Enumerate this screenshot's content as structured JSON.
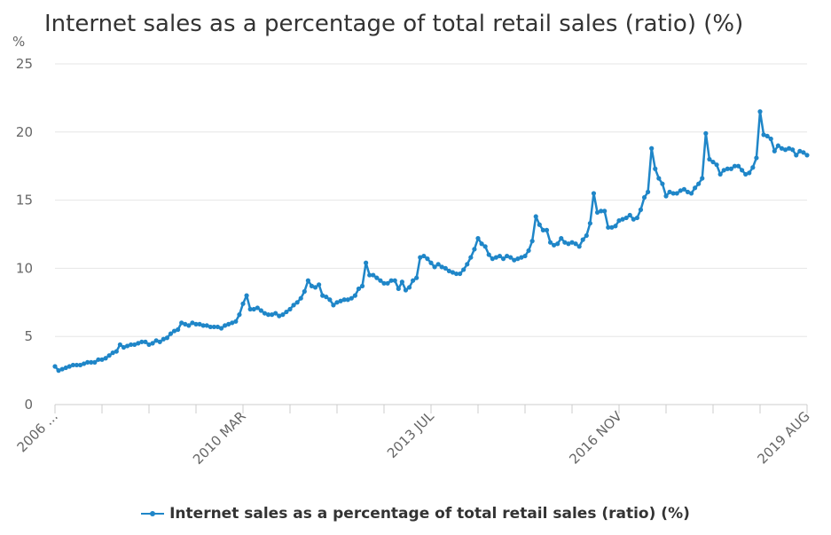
{
  "chart_data": {
    "type": "line",
    "title": "Internet sales as a percentage of total retail sales (ratio) (%)",
    "unit_label": "%",
    "y_ticks": [
      "0",
      "5",
      "10",
      "15",
      "20",
      "25"
    ],
    "ylim": [
      0,
      25
    ],
    "x_tick_labels": [
      "2006 ...",
      "2010 MAR",
      "2013 JUL",
      "2016 NOV",
      "2019 AUG"
    ],
    "grid": true,
    "legend_position": "bottom",
    "series": [
      {
        "name": "Internet sales as a percentage of total retail sales (ratio) (%)",
        "color": "#1f86c8",
        "start": "2006-11",
        "end": "2019-08",
        "values": [
          2.8,
          2.5,
          2.6,
          2.7,
          2.8,
          2.9,
          2.9,
          2.9,
          3.0,
          3.1,
          3.1,
          3.1,
          3.3,
          3.3,
          3.4,
          3.6,
          3.8,
          3.9,
          4.4,
          4.2,
          4.3,
          4.4,
          4.4,
          4.5,
          4.6,
          4.6,
          4.4,
          4.5,
          4.7,
          4.6,
          4.8,
          4.9,
          5.2,
          5.4,
          5.5,
          6.0,
          5.9,
          5.8,
          6.0,
          5.9,
          5.9,
          5.8,
          5.8,
          5.7,
          5.7,
          5.7,
          5.6,
          5.8,
          5.9,
          6.0,
          6.1,
          6.6,
          7.4,
          8.0,
          7.0,
          7.0,
          7.1,
          6.9,
          6.7,
          6.6,
          6.6,
          6.7,
          6.5,
          6.6,
          6.8,
          7.0,
          7.3,
          7.5,
          7.8,
          8.3,
          9.1,
          8.7,
          8.6,
          8.8,
          8.0,
          7.9,
          7.7,
          7.3,
          7.5,
          7.6,
          7.7,
          7.7,
          7.8,
          8.0,
          8.5,
          8.7,
          10.4,
          9.5,
          9.5,
          9.3,
          9.1,
          8.9,
          8.9,
          9.1,
          9.1,
          8.5,
          9.0,
          8.4,
          8.6,
          9.1,
          9.3,
          10.8,
          10.9,
          10.7,
          10.4,
          10.1,
          10.3,
          10.1,
          10.0,
          9.8,
          9.7,
          9.6,
          9.6,
          9.9,
          10.3,
          10.8,
          11.4,
          12.2,
          11.8,
          11.6,
          11.0,
          10.7,
          10.8,
          10.9,
          10.7,
          10.9,
          10.8,
          10.6,
          10.7,
          10.8,
          10.9,
          11.3,
          12.0,
          13.8,
          13.2,
          12.8,
          12.8,
          11.9,
          11.7,
          11.8,
          12.2,
          11.9,
          11.8,
          11.9,
          11.8,
          11.6,
          12.1,
          12.4,
          13.3,
          15.5,
          14.1,
          14.2,
          14.2,
          13.0,
          13.0,
          13.1,
          13.5,
          13.6,
          13.7,
          13.9,
          13.6,
          13.7,
          14.3,
          15.2,
          15.6,
          18.8,
          17.3,
          16.6,
          16.2,
          15.3,
          15.6,
          15.5,
          15.5,
          15.7,
          15.8,
          15.6,
          15.5,
          15.9,
          16.2,
          16.6,
          19.9,
          18.0,
          17.8,
          17.6,
          16.9,
          17.2,
          17.3,
          17.3,
          17.5,
          17.5,
          17.2,
          16.9,
          17.0,
          17.4,
          18.1,
          21.5,
          19.8,
          19.7,
          19.5,
          18.6,
          19.0,
          18.8,
          18.7,
          18.8,
          18.7,
          18.3,
          18.6,
          18.5,
          18.3
        ]
      }
    ]
  }
}
